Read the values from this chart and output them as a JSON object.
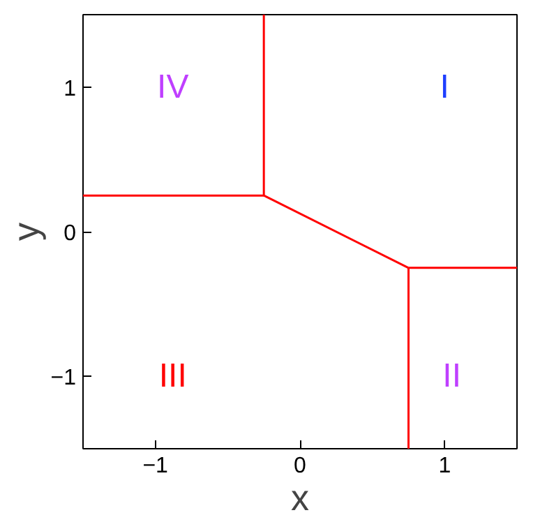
{
  "chart_data": {
    "type": "line",
    "xlabel": "x",
    "ylabel": "y",
    "xlim": [
      -1.5,
      1.5
    ],
    "ylim": [
      -1.5,
      1.5
    ],
    "xticks": [
      {
        "value": -1,
        "label": "−1"
      },
      0,
      1
    ],
    "yticks": [
      {
        "value": -1,
        "label": "−1"
      },
      0,
      1
    ],
    "grid": false,
    "marker": "none",
    "line_style": "solid",
    "series": [
      {
        "color": "#ff0000",
        "x": [
          -0.25,
          -0.25
        ],
        "values": [
          1.5,
          0.25
        ]
      },
      {
        "color": "#ff0000",
        "x": [
          -1.5,
          -0.25
        ],
        "values": [
          0.25,
          0.25
        ]
      },
      {
        "color": "#ff0000",
        "x": [
          -0.25,
          0.75
        ],
        "values": [
          0.25,
          -0.25
        ]
      },
      {
        "color": "#ff0000",
        "x": [
          0.75,
          0.75
        ],
        "values": [
          -0.25,
          -1.5
        ]
      },
      {
        "color": "#ff0000",
        "x": [
          0.75,
          1.5
        ],
        "values": [
          -0.25,
          -0.25
        ]
      }
    ],
    "annotations": [
      "I",
      "II",
      "III",
      "IV"
    ]
  }
}
